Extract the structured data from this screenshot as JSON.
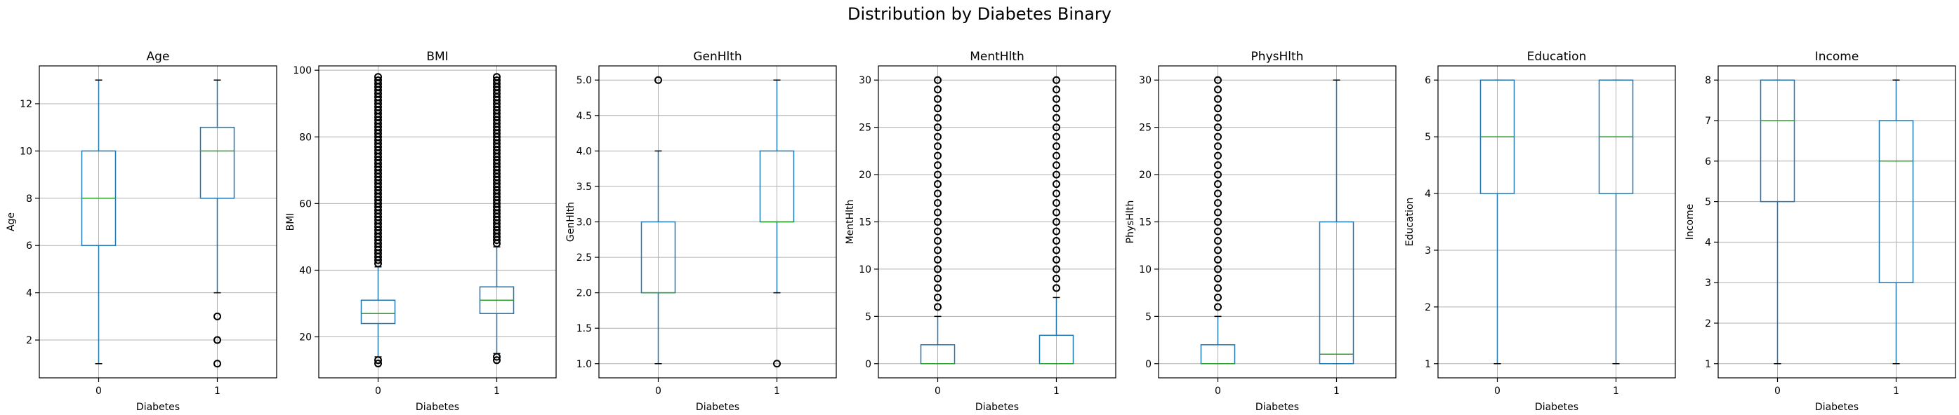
{
  "figure": {
    "title": "Distribution by Diabetes Binary"
  },
  "colors": {
    "box": "#1f77b4",
    "median": "#2ca02c",
    "grid": "#b0b0b0",
    "flier": "#000000"
  },
  "chart_data": [
    {
      "type": "box",
      "title": "Age",
      "xlabel": "Diabetes",
      "ylabel": "Age",
      "categories": [
        "0",
        "1"
      ],
      "ylim": [
        0.4,
        13.6
      ],
      "yticks": [
        2,
        4,
        6,
        8,
        10,
        12
      ],
      "ytick_labels": [
        "2",
        "4",
        "6",
        "8",
        "10",
        "12"
      ],
      "grid": true,
      "boxes": [
        {
          "category": "0",
          "whisker_low": 1,
          "q1": 6,
          "median": 8,
          "q3": 10,
          "whisker_high": 13,
          "outliers": []
        },
        {
          "category": "1",
          "whisker_low": 4,
          "q1": 8,
          "median": 10,
          "q3": 11,
          "whisker_high": 13,
          "outliers": [
            1,
            2,
            3
          ]
        }
      ]
    },
    {
      "type": "box",
      "title": "BMI",
      "xlabel": "Diabetes",
      "ylabel": "BMI",
      "categories": [
        "0",
        "1"
      ],
      "ylim": [
        7.7,
        101.3
      ],
      "yticks": [
        20,
        40,
        60,
        80,
        100
      ],
      "ytick_labels": [
        "20",
        "40",
        "60",
        "80",
        "100"
      ],
      "grid": true,
      "boxes": [
        {
          "category": "0",
          "whisker_low": 14,
          "q1": 24,
          "median": 27,
          "q3": 31,
          "whisker_high": 41,
          "outliers": [
            12,
            13,
            42,
            43,
            44,
            45,
            46,
            47,
            48,
            49,
            50,
            51,
            52,
            53,
            54,
            55,
            56,
            57,
            58,
            59,
            60,
            61,
            62,
            63,
            64,
            65,
            66,
            67,
            68,
            69,
            70,
            71,
            72,
            73,
            74,
            75,
            76,
            77,
            78,
            79,
            80,
            81,
            82,
            83,
            84,
            85,
            86,
            87,
            88,
            89,
            90,
            91,
            92,
            93,
            94,
            95,
            96,
            97,
            98
          ]
        },
        {
          "category": "1",
          "whisker_low": 15,
          "q1": 27,
          "median": 31,
          "q3": 35,
          "whisker_high": 47,
          "outliers": [
            13,
            14,
            48,
            49,
            50,
            51,
            52,
            53,
            54,
            55,
            56,
            57,
            58,
            59,
            60,
            61,
            62,
            63,
            64,
            65,
            66,
            67,
            68,
            69,
            70,
            71,
            72,
            73,
            74,
            75,
            76,
            77,
            78,
            79,
            80,
            81,
            82,
            83,
            84,
            85,
            86,
            87,
            88,
            89,
            90,
            91,
            92,
            93,
            94,
            95,
            96,
            97,
            98
          ]
        }
      ]
    },
    {
      "type": "box",
      "title": "GenHlth",
      "xlabel": "Diabetes",
      "ylabel": "GenHlth",
      "categories": [
        "0",
        "1"
      ],
      "ylim": [
        0.8,
        5.2
      ],
      "yticks": [
        1.0,
        1.5,
        2.0,
        2.5,
        3.0,
        3.5,
        4.0,
        4.5,
        5.0
      ],
      "ytick_labels": [
        "1.0",
        "1.5",
        "2.0",
        "2.5",
        "3.0",
        "3.5",
        "4.0",
        "4.5",
        "5.0"
      ],
      "grid": true,
      "boxes": [
        {
          "category": "0",
          "whisker_low": 1,
          "q1": 2,
          "median": 2,
          "q3": 3,
          "whisker_high": 4,
          "outliers": [
            5
          ]
        },
        {
          "category": "1",
          "whisker_low": 2,
          "q1": 3,
          "median": 3,
          "q3": 4,
          "whisker_high": 5,
          "outliers": [
            1
          ]
        }
      ]
    },
    {
      "type": "box",
      "title": "MentHlth",
      "xlabel": "Diabetes",
      "ylabel": "MentHlth",
      "categories": [
        "0",
        "1"
      ],
      "ylim": [
        -1.5,
        31.5
      ],
      "yticks": [
        0,
        5,
        10,
        15,
        20,
        25,
        30
      ],
      "ytick_labels": [
        "0",
        "5",
        "10",
        "15",
        "20",
        "25",
        "30"
      ],
      "grid": true,
      "boxes": [
        {
          "category": "0",
          "whisker_low": 0,
          "q1": 0,
          "median": 0,
          "q3": 2,
          "whisker_high": 5,
          "outliers": [
            6,
            7,
            8,
            9,
            10,
            11,
            12,
            13,
            14,
            15,
            16,
            17,
            18,
            19,
            20,
            21,
            22,
            23,
            24,
            25,
            26,
            27,
            28,
            29,
            30
          ]
        },
        {
          "category": "1",
          "whisker_low": 0,
          "q1": 0,
          "median": 0,
          "q3": 3,
          "whisker_high": 7,
          "outliers": [
            8,
            9,
            10,
            11,
            12,
            13,
            14,
            15,
            16,
            17,
            18,
            19,
            20,
            21,
            22,
            23,
            24,
            25,
            26,
            27,
            28,
            29,
            30
          ]
        }
      ]
    },
    {
      "type": "box",
      "title": "PhysHlth",
      "xlabel": "Diabetes",
      "ylabel": "PhysHlth",
      "categories": [
        "0",
        "1"
      ],
      "ylim": [
        -1.5,
        31.5
      ],
      "yticks": [
        0,
        5,
        10,
        15,
        20,
        25,
        30
      ],
      "ytick_labels": [
        "0",
        "5",
        "10",
        "15",
        "20",
        "25",
        "30"
      ],
      "grid": true,
      "boxes": [
        {
          "category": "0",
          "whisker_low": 0,
          "q1": 0,
          "median": 0,
          "q3": 2,
          "whisker_high": 5,
          "outliers": [
            6,
            7,
            8,
            9,
            10,
            11,
            12,
            13,
            14,
            15,
            16,
            17,
            18,
            19,
            20,
            21,
            22,
            23,
            24,
            25,
            26,
            27,
            28,
            29,
            30
          ]
        },
        {
          "category": "1",
          "whisker_low": 0,
          "q1": 0,
          "median": 1,
          "q3": 15,
          "whisker_high": 30,
          "outliers": []
        }
      ]
    },
    {
      "type": "box",
      "title": "Education",
      "xlabel": "Diabetes",
      "ylabel": "Education",
      "categories": [
        "0",
        "1"
      ],
      "ylim": [
        0.75,
        6.25
      ],
      "yticks": [
        1,
        2,
        3,
        4,
        5,
        6
      ],
      "ytick_labels": [
        "1",
        "2",
        "3",
        "4",
        "5",
        "6"
      ],
      "grid": true,
      "boxes": [
        {
          "category": "0",
          "whisker_low": 1,
          "q1": 4,
          "median": 5,
          "q3": 6,
          "whisker_high": 6,
          "outliers": []
        },
        {
          "category": "1",
          "whisker_low": 1,
          "q1": 4,
          "median": 5,
          "q3": 6,
          "whisker_high": 6,
          "outliers": []
        }
      ]
    },
    {
      "type": "box",
      "title": "Income",
      "xlabel": "Diabetes",
      "ylabel": "Income",
      "categories": [
        "0",
        "1"
      ],
      "ylim": [
        0.65,
        8.35
      ],
      "yticks": [
        1,
        2,
        3,
        4,
        5,
        6,
        7,
        8
      ],
      "ytick_labels": [
        "1",
        "2",
        "3",
        "4",
        "5",
        "6",
        "7",
        "8"
      ],
      "grid": true,
      "boxes": [
        {
          "category": "0",
          "whisker_low": 1,
          "q1": 5,
          "median": 7,
          "q3": 8,
          "whisker_high": 8,
          "outliers": []
        },
        {
          "category": "1",
          "whisker_low": 1,
          "q1": 3,
          "median": 6,
          "q3": 7,
          "whisker_high": 8,
          "outliers": []
        }
      ]
    }
  ]
}
